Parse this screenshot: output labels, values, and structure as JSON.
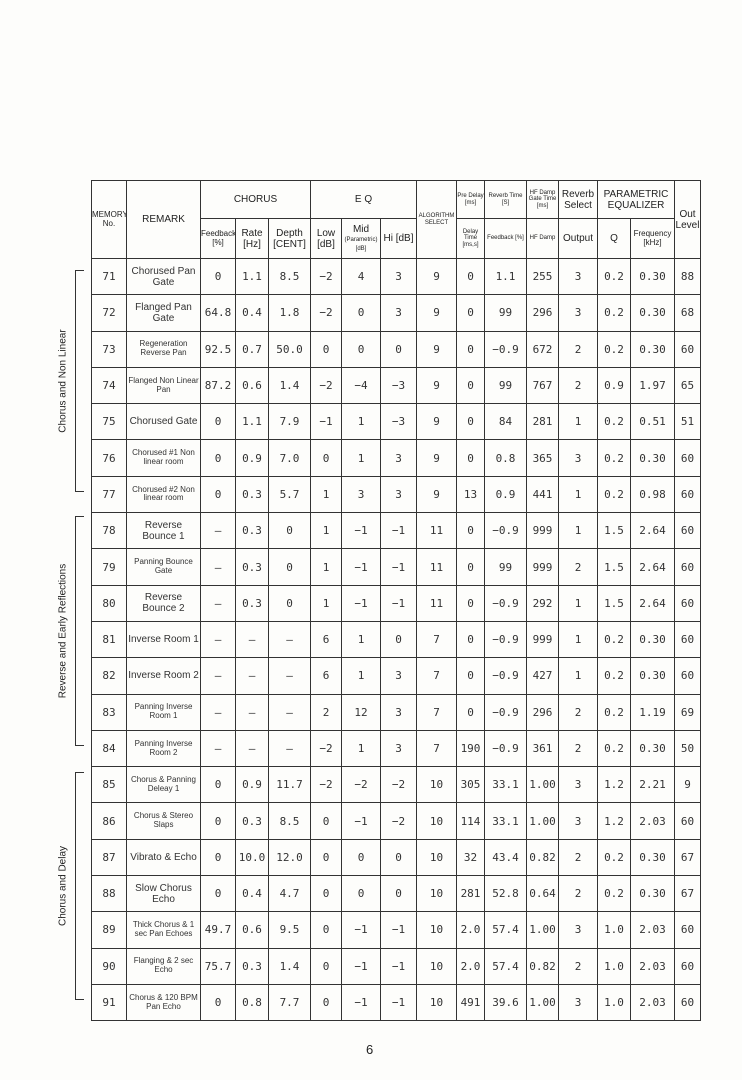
{
  "header": {
    "memory_no": "MEMORY No.",
    "remark": "REMARK",
    "chorus": "CHORUS",
    "eq": "E Q",
    "algorithm_select": "ALGORITHM SELECT",
    "pre_delay": "Pre Delay [ms]",
    "reverb_time": "Reverb Time [S]",
    "hf_damp_gate_time_top": "HF Damp",
    "gate_time": "Gate Time [ms]",
    "reverb_select": "Reverb Select",
    "parametric_equalizer": "PARAMETRIC EQUALIZER",
    "out_level": "Out Level",
    "feedback_pct": "Feedback [%]",
    "rate": "Rate [Hz]",
    "depth": "Depth [CENT]",
    "low": "Low [dB]",
    "mid": "Mid",
    "mid_sub": "(Parametric) [dB]",
    "hi": "Hi [dB]",
    "delay_time": "Delay Time [ms,s]",
    "feedback": "Feedback [%]",
    "hf_damp": "HF Damp",
    "output": "Output",
    "q": "Q",
    "frequency": "Frequency [kHz]"
  },
  "groups": [
    {
      "label": "Chorus and Non Linear"
    },
    {
      "label": "Reverse and Early Reflections"
    },
    {
      "label": "Chorus and Delay"
    }
  ],
  "rows": [
    [
      "71",
      "Chorused Pan Gate",
      "0",
      "1.1",
      "8.5",
      "−2",
      "4",
      "3",
      "9",
      "0",
      "1.1",
      "255",
      "3",
      "0.2",
      "0.30",
      "88"
    ],
    [
      "72",
      "Flanged Pan Gate",
      "64.8",
      "0.4",
      "1.8",
      "−2",
      "0",
      "3",
      "9",
      "0",
      "99",
      "296",
      "3",
      "0.2",
      "0.30",
      "68"
    ],
    [
      "73",
      "Regeneration Reverse Pan",
      "92.5",
      "0.7",
      "50.0",
      "0",
      "0",
      "0",
      "9",
      "0",
      "−0.9",
      "672",
      "2",
      "0.2",
      "0.30",
      "60"
    ],
    [
      "74",
      "Flanged Non Linear Pan",
      "87.2",
      "0.6",
      "1.4",
      "−2",
      "−4",
      "−3",
      "9",
      "0",
      "99",
      "767",
      "2",
      "0.9",
      "1.97",
      "65"
    ],
    [
      "75",
      "Chorused Gate",
      "0",
      "1.1",
      "7.9",
      "−1",
      "1",
      "−3",
      "9",
      "0",
      "84",
      "281",
      "1",
      "0.2",
      "0.51",
      "51"
    ],
    [
      "76",
      "Chorused #1 Non linear room",
      "0",
      "0.9",
      "7.0",
      "0",
      "1",
      "3",
      "9",
      "0",
      "0.8",
      "365",
      "3",
      "0.2",
      "0.30",
      "60"
    ],
    [
      "77",
      "Chorused #2 Non linear room",
      "0",
      "0.3",
      "5.7",
      "1",
      "3",
      "3",
      "9",
      "13",
      "0.9",
      "441",
      "1",
      "0.2",
      "0.98",
      "60"
    ],
    [
      "78",
      "Reverse Bounce 1",
      "—",
      "0.3",
      "0",
      "1",
      "−1",
      "−1",
      "11",
      "0",
      "−0.9",
      "999",
      "1",
      "1.5",
      "2.64",
      "60"
    ],
    [
      "79",
      "Panning Bounce Gate",
      "—",
      "0.3",
      "0",
      "1",
      "−1",
      "−1",
      "11",
      "0",
      "99",
      "999",
      "2",
      "1.5",
      "2.64",
      "60"
    ],
    [
      "80",
      "Reverse Bounce 2",
      "—",
      "0.3",
      "0",
      "1",
      "−1",
      "−1",
      "11",
      "0",
      "−0.9",
      "292",
      "1",
      "1.5",
      "2.64",
      "60"
    ],
    [
      "81",
      "Inverse Room 1",
      "—",
      "—",
      "—",
      "6",
      "1",
      "0",
      "7",
      "0",
      "−0.9",
      "999",
      "1",
      "0.2",
      "0.30",
      "60"
    ],
    [
      "82",
      "Inverse Room 2",
      "—",
      "—",
      "—",
      "6",
      "1",
      "3",
      "7",
      "0",
      "−0.9",
      "427",
      "1",
      "0.2",
      "0.30",
      "60"
    ],
    [
      "83",
      "Panning Inverse Room 1",
      "—",
      "—",
      "—",
      "2",
      "12",
      "3",
      "7",
      "0",
      "−0.9",
      "296",
      "2",
      "0.2",
      "1.19",
      "69"
    ],
    [
      "84",
      "Panning Inverse Room 2",
      "—",
      "—",
      "—",
      "−2",
      "1",
      "3",
      "7",
      "190",
      "−0.9",
      "361",
      "2",
      "0.2",
      "0.30",
      "50"
    ],
    [
      "85",
      "Chorus & Panning Deleay 1",
      "0",
      "0.9",
      "11.7",
      "−2",
      "−2",
      "−2",
      "10",
      "305",
      "33.1",
      "1.00",
      "3",
      "1.2",
      "2.21",
      "9"
    ],
    [
      "86",
      "Chorus & Stereo Slaps",
      "0",
      "0.3",
      "8.5",
      "0",
      "−1",
      "−2",
      "10",
      "114",
      "33.1",
      "1.00",
      "3",
      "1.2",
      "2.03",
      "60"
    ],
    [
      "87",
      "Vibrato & Echo",
      "0",
      "10.0",
      "12.0",
      "0",
      "0",
      "0",
      "10",
      "32",
      "43.4",
      "0.82",
      "2",
      "0.2",
      "0.30",
      "67"
    ],
    [
      "88",
      "Slow Chorus Echo",
      "0",
      "0.4",
      "4.7",
      "0",
      "0",
      "0",
      "10",
      "281",
      "52.8",
      "0.64",
      "2",
      "0.2",
      "0.30",
      "67"
    ],
    [
      "89",
      "Thick Chorus & 1 sec Pan Echoes",
      "49.7",
      "0.6",
      "9.5",
      "0",
      "−1",
      "−1",
      "10",
      "2.0",
      "57.4",
      "1.00",
      "3",
      "1.0",
      "2.03",
      "60"
    ],
    [
      "90",
      "Flanging & 2 sec Echo",
      "75.7",
      "0.3",
      "1.4",
      "0",
      "−1",
      "−1",
      "10",
      "2.0",
      "57.4",
      "0.82",
      "2",
      "1.0",
      "2.03",
      "60"
    ],
    [
      "91",
      "Chorus & 120 BPM Pan Echo",
      "0",
      "0.8",
      "7.7",
      "0",
      "−1",
      "−1",
      "10",
      "491",
      "39.6",
      "1.00",
      "3",
      "1.0",
      "2.03",
      "60"
    ]
  ],
  "page_number": "6"
}
